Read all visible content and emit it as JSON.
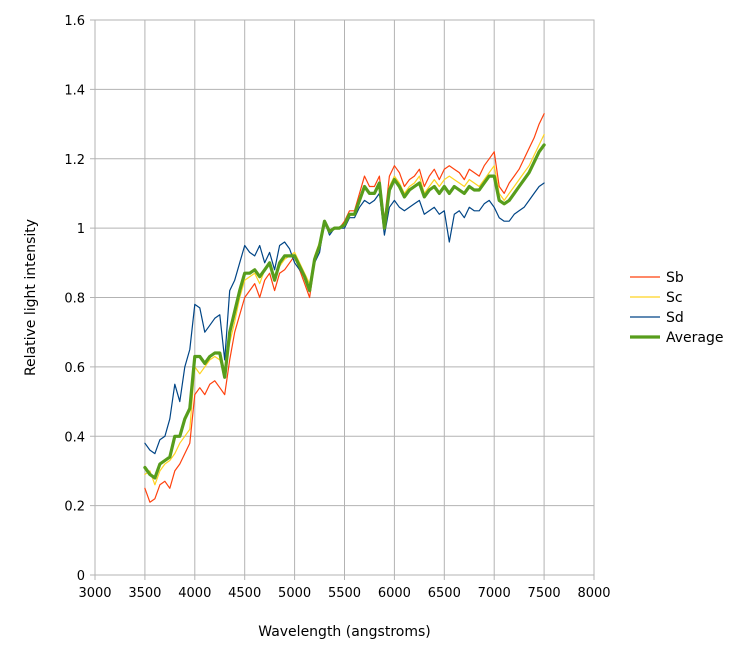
{
  "chart_data": {
    "type": "line",
    "title": "",
    "xlabel": "Wavelength (angstroms)",
    "ylabel": "Relative light intensity",
    "xlim": [
      3000,
      8000
    ],
    "ylim": [
      0,
      1.6
    ],
    "x_ticks": [
      "3000",
      "3500",
      "4000",
      "4500",
      "5000",
      "5500",
      "6000",
      "6500",
      "7000",
      "7500",
      "8000"
    ],
    "y_ticks": [
      "0",
      "0.2",
      "0.4",
      "0.6",
      "0.8",
      "1",
      "1.2",
      "1.4",
      "1.6"
    ],
    "grid": true,
    "legend_position": "right",
    "x": [
      3500,
      3550,
      3600,
      3650,
      3700,
      3750,
      3800,
      3850,
      3900,
      3950,
      4000,
      4050,
      4100,
      4150,
      4200,
      4250,
      4300,
      4350,
      4400,
      4450,
      4500,
      4550,
      4600,
      4650,
      4700,
      4750,
      4800,
      4850,
      4900,
      4950,
      5000,
      5050,
      5100,
      5150,
      5200,
      5250,
      5300,
      5350,
      5400,
      5450,
      5500,
      5550,
      5600,
      5650,
      5700,
      5750,
      5800,
      5850,
      5900,
      5950,
      6000,
      6050,
      6100,
      6150,
      6200,
      6250,
      6300,
      6350,
      6400,
      6450,
      6500,
      6550,
      6600,
      6650,
      6700,
      6750,
      6800,
      6850,
      6900,
      6950,
      7000,
      7050,
      7100,
      7150,
      7200,
      7250,
      7300,
      7350,
      7400,
      7450,
      7500
    ],
    "series": [
      {
        "name": "Sb",
        "color": "#ff420e",
        "width": 1.2,
        "values": [
          0.25,
          0.21,
          0.22,
          0.26,
          0.27,
          0.25,
          0.3,
          0.32,
          0.35,
          0.38,
          0.52,
          0.54,
          0.52,
          0.55,
          0.56,
          0.54,
          0.52,
          0.62,
          0.7,
          0.75,
          0.8,
          0.82,
          0.84,
          0.8,
          0.85,
          0.87,
          0.82,
          0.87,
          0.88,
          0.9,
          0.92,
          0.88,
          0.84,
          0.8,
          0.9,
          0.95,
          1.02,
          0.99,
          1.0,
          1.0,
          1.02,
          1.05,
          1.05,
          1.1,
          1.15,
          1.12,
          1.12,
          1.15,
          1.02,
          1.15,
          1.18,
          1.16,
          1.12,
          1.14,
          1.15,
          1.17,
          1.12,
          1.15,
          1.17,
          1.14,
          1.17,
          1.18,
          1.17,
          1.16,
          1.14,
          1.17,
          1.16,
          1.15,
          1.18,
          1.2,
          1.22,
          1.12,
          1.1,
          1.13,
          1.15,
          1.17,
          1.2,
          1.23,
          1.26,
          1.3,
          1.33
        ]
      },
      {
        "name": "Sc",
        "color": "#ffd320",
        "width": 1.2,
        "values": [
          0.29,
          0.3,
          0.26,
          0.3,
          0.32,
          0.33,
          0.35,
          0.38,
          0.4,
          0.42,
          0.6,
          0.58,
          0.6,
          0.62,
          0.63,
          0.62,
          0.58,
          0.67,
          0.73,
          0.8,
          0.85,
          0.86,
          0.87,
          0.84,
          0.88,
          0.9,
          0.86,
          0.89,
          0.91,
          0.92,
          0.93,
          0.9,
          0.87,
          0.84,
          0.92,
          0.96,
          1.02,
          0.99,
          1.0,
          1.0,
          1.01,
          1.04,
          1.04,
          1.08,
          1.12,
          1.1,
          1.1,
          1.13,
          1.0,
          1.12,
          1.15,
          1.13,
          1.1,
          1.12,
          1.13,
          1.15,
          1.1,
          1.12,
          1.14,
          1.12,
          1.14,
          1.15,
          1.14,
          1.13,
          1.12,
          1.14,
          1.13,
          1.12,
          1.14,
          1.16,
          1.18,
          1.1,
          1.08,
          1.1,
          1.12,
          1.14,
          1.16,
          1.18,
          1.21,
          1.24,
          1.27
        ]
      },
      {
        "name": "Sd",
        "color": "#004586",
        "width": 1.2,
        "values": [
          0.38,
          0.36,
          0.35,
          0.39,
          0.4,
          0.45,
          0.55,
          0.5,
          0.6,
          0.65,
          0.78,
          0.77,
          0.7,
          0.72,
          0.74,
          0.75,
          0.62,
          0.82,
          0.85,
          0.9,
          0.95,
          0.93,
          0.92,
          0.95,
          0.9,
          0.93,
          0.88,
          0.95,
          0.96,
          0.94,
          0.9,
          0.88,
          0.86,
          0.82,
          0.9,
          0.93,
          1.02,
          0.98,
          1.0,
          1.0,
          1.0,
          1.03,
          1.03,
          1.06,
          1.08,
          1.07,
          1.08,
          1.1,
          0.98,
          1.06,
          1.08,
          1.06,
          1.05,
          1.06,
          1.07,
          1.08,
          1.04,
          1.05,
          1.06,
          1.04,
          1.05,
          0.96,
          1.04,
          1.05,
          1.03,
          1.06,
          1.05,
          1.05,
          1.07,
          1.08,
          1.06,
          1.03,
          1.02,
          1.02,
          1.04,
          1.05,
          1.06,
          1.08,
          1.1,
          1.12,
          1.13
        ]
      },
      {
        "name": "Average",
        "color": "#579d1c",
        "width": 3.2,
        "values": [
          0.31,
          0.29,
          0.28,
          0.32,
          0.33,
          0.34,
          0.4,
          0.4,
          0.45,
          0.48,
          0.63,
          0.63,
          0.61,
          0.63,
          0.64,
          0.64,
          0.57,
          0.7,
          0.76,
          0.82,
          0.87,
          0.87,
          0.88,
          0.86,
          0.88,
          0.9,
          0.85,
          0.9,
          0.92,
          0.92,
          0.92,
          0.89,
          0.86,
          0.82,
          0.91,
          0.95,
          1.02,
          0.99,
          1.0,
          1.0,
          1.01,
          1.04,
          1.04,
          1.08,
          1.12,
          1.1,
          1.1,
          1.13,
          1.0,
          1.11,
          1.14,
          1.12,
          1.09,
          1.11,
          1.12,
          1.13,
          1.09,
          1.11,
          1.12,
          1.1,
          1.12,
          1.1,
          1.12,
          1.11,
          1.1,
          1.12,
          1.11,
          1.11,
          1.13,
          1.15,
          1.15,
          1.08,
          1.07,
          1.08,
          1.1,
          1.12,
          1.14,
          1.16,
          1.19,
          1.22,
          1.24
        ]
      }
    ]
  }
}
